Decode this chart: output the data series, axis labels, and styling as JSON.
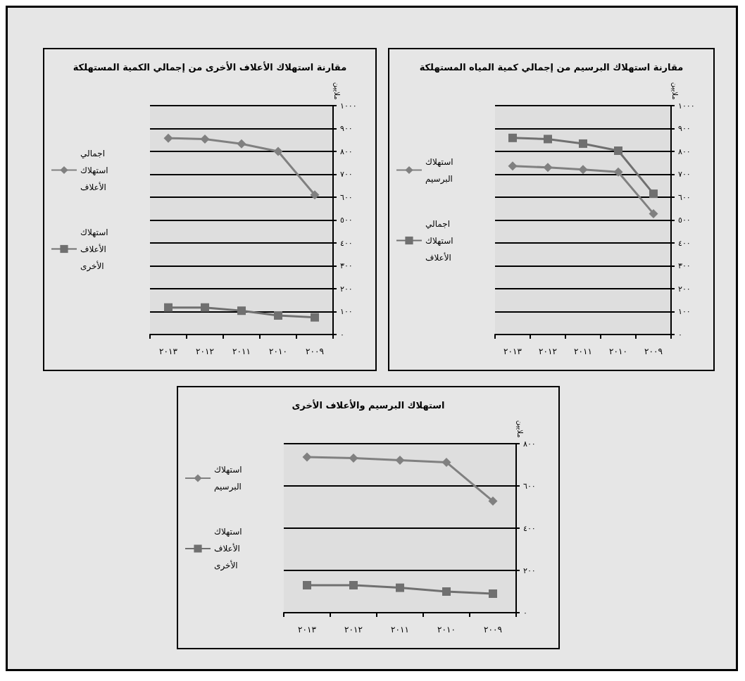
{
  "chart_data": [
    {
      "type": "line",
      "title": "مقارنة استهلاك الأعلاف الأخرى من إجمالي الكمية المستهلكة",
      "ylabel": "ملايين",
      "categories": [
        "٢٠١٣",
        "٢٠١٢",
        "٢٠١١",
        "٢٠١٠",
        "٢٠٠٩"
      ],
      "series": [
        {
          "name": "اجمالي استهلاك الأعلاف",
          "color": "#808080",
          "marker": "diamond",
          "values": [
            858,
            854,
            833,
            800,
            610
          ]
        },
        {
          "name": "استهلاك الأعلاف الأخرى",
          "color": "#707070",
          "marker": "square",
          "values": [
            118,
            118,
            104,
            83,
            75
          ]
        }
      ],
      "ylim": [
        0,
        1000
      ],
      "yticks": [
        {
          "value": 0,
          "label": "٠"
        },
        {
          "value": 100,
          "label": "١٠٠"
        },
        {
          "value": 200,
          "label": "٢٠٠"
        },
        {
          "value": 300,
          "label": "٣٠٠"
        },
        {
          "value": 400,
          "label": "٤٠٠"
        },
        {
          "value": 500,
          "label": "٥٠٠"
        },
        {
          "value": 600,
          "label": "٦٠٠"
        },
        {
          "value": 700,
          "label": "٧٠٠"
        },
        {
          "value": 800,
          "label": "٨٠٠"
        },
        {
          "value": 900,
          "label": "٩٠٠"
        },
        {
          "value": 1000,
          "label": "١٠٠٠"
        }
      ],
      "grid": "y",
      "legend": "left"
    },
    {
      "type": "line",
      "title": "مقارنة استهلاك البرسيم من إجمالي كمية المياه المستهلكة",
      "ylabel": "ملايين",
      "categories": [
        "٢٠١٣",
        "٢٠١٢",
        "٢٠١١",
        "٢٠١٠",
        "٢٠٠٩"
      ],
      "series": [
        {
          "name": "استهلاك  البرسيم",
          "color": "#808080",
          "marker": "diamond",
          "values": [
            736,
            730,
            721,
            710,
            528
          ]
        },
        {
          "name": "اجمالي استهلاك الأعلاف",
          "color": "#707070",
          "marker": "square",
          "values": [
            859,
            854,
            834,
            803,
            615
          ]
        }
      ],
      "ylim": [
        0,
        1000
      ],
      "yticks": [
        {
          "value": 0,
          "label": "٠"
        },
        {
          "value": 100,
          "label": "١٠٠"
        },
        {
          "value": 200,
          "label": "٢٠٠"
        },
        {
          "value": 300,
          "label": "٣٠٠"
        },
        {
          "value": 400,
          "label": "٤٠٠"
        },
        {
          "value": 500,
          "label": "٥٠٠"
        },
        {
          "value": 600,
          "label": "٦٠٠"
        },
        {
          "value": 700,
          "label": "٧٠٠"
        },
        {
          "value": 800,
          "label": "٨٠٠"
        },
        {
          "value": 900,
          "label": "٩٠٠"
        },
        {
          "value": 1000,
          "label": "١٠٠٠"
        }
      ],
      "grid": "y",
      "legend": "left"
    },
    {
      "type": "line",
      "title": "استهلاك البرسيم والأعلاف الأخرى",
      "ylabel": "ملايين",
      "categories": [
        "٢٠١٣",
        "٢٠١٢",
        "٢٠١١",
        "٢٠١٠",
        "٢٠٠٩"
      ],
      "series": [
        {
          "name": "استهلاك  البرسيم",
          "color": "#808080",
          "marker": "diamond",
          "values": [
            737,
            732,
            722,
            712,
            528
          ]
        },
        {
          "name": "استهلاك الأعلاف الأخرى",
          "color": "#707070",
          "marker": "square",
          "values": [
            130,
            130,
            118,
            100,
            90
          ]
        }
      ],
      "ylim": [
        0,
        800
      ],
      "yticks": [
        {
          "value": 0,
          "label": "٠"
        },
        {
          "value": 200,
          "label": "٢٠٠"
        },
        {
          "value": 400,
          "label": "٤٠٠"
        },
        {
          "value": 600,
          "label": "٦٠٠"
        },
        {
          "value": 800,
          "label": "٨٠٠"
        }
      ],
      "grid": "y",
      "legend": "left"
    }
  ]
}
